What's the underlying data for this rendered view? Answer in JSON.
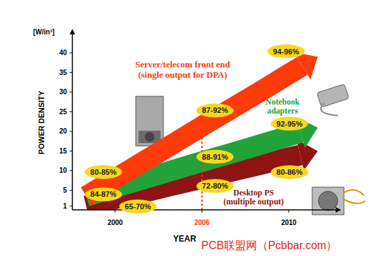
{
  "chart_data": {
    "type": "line",
    "y_label": "POWER DENSITY",
    "y_unit": "[W/in³]",
    "x_label": "YEAR",
    "categories": [
      null,
      "2000",
      null,
      null,
      "2006",
      null,
      null,
      "2010",
      null
    ],
    "ylim": [
      0,
      44
    ],
    "yticks": [
      1,
      5,
      10,
      15,
      20,
      25,
      30,
      35,
      40
    ],
    "grid": false,
    "series": [
      {
        "name": "Server/telecom front end\n(single output for DPA)",
        "color": "#ff3a0a",
        "values": [
          3.5,
          7.9,
          12.4,
          16.8,
          21.3,
          25.7,
          30.1,
          34.6,
          39
        ]
      },
      {
        "name": "Notebook\nadapters",
        "color": "#22a33a",
        "values": [
          3.5,
          5.7,
          7.9,
          10.1,
          12.3,
          14.4,
          16.6,
          18.8,
          21
        ]
      },
      {
        "name": "Desktop PS\n(multiple output)",
        "color": "#8e1414",
        "values": [
          1,
          2.8,
          4.5,
          6.3,
          8,
          9.8,
          11.5,
          13.3,
          15
        ]
      }
    ],
    "annotations": [
      {
        "text": "80-85%",
        "series": 0,
        "at": "2000"
      },
      {
        "text": "87-92%",
        "series": 0,
        "at": "2006"
      },
      {
        "text": "94-96%",
        "series": 0,
        "at": "2010"
      },
      {
        "text": "84-87%",
        "series": 1,
        "at": "2000"
      },
      {
        "text": "88-91%",
        "series": 1,
        "at": "2006"
      },
      {
        "text": "92-95%",
        "series": 1,
        "at": "2010"
      },
      {
        "text": "65-70%",
        "series": 2,
        "at": "2000"
      },
      {
        "text": "72-80%",
        "series": 2,
        "at": "2006"
      },
      {
        "text": "80-86%",
        "series": 2,
        "at": "2010"
      }
    ],
    "marker_line": {
      "at": "2006",
      "series": 0,
      "color": "#ff3a0a",
      "line_style": "dashed"
    },
    "watermark": "PCB联盟网（Pcbbar.com）"
  }
}
